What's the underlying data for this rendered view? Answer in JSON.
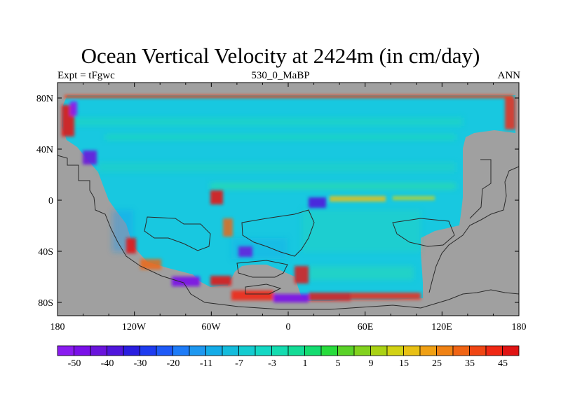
{
  "map": {
    "title": "Ocean Vertical Velocity at 2424m (in cm/day)",
    "left_string": "Expt = tFgwc",
    "center_string": "530_0_MaBP",
    "right_string": "ANN",
    "x_ticks": [
      "180",
      "120W",
      "60W",
      "0",
      "60E",
      "120E",
      "180"
    ],
    "y_ticks": [
      "80N",
      "40N",
      "0",
      "40S",
      "80S"
    ],
    "land_color": "#a0a0a0",
    "colorbar": {
      "labels": [
        "-50",
        "-40",
        "-30",
        "-20",
        "-11",
        "-7",
        "-3",
        "1",
        "5",
        "9",
        "15",
        "25",
        "35",
        "45"
      ],
      "colors": [
        "#8a1cf0",
        "#7a10e8",
        "#6a14dc",
        "#5016dc",
        "#2a1ee0",
        "#1e3cf0",
        "#1e5af8",
        "#1e7cf8",
        "#1e98f0",
        "#14ace8",
        "#14bcdc",
        "#14ccd0",
        "#14d8c4",
        "#14dcb0",
        "#14dc96",
        "#14dc70",
        "#28dc3c",
        "#5ad228",
        "#82d21e",
        "#aad214",
        "#d2d214",
        "#e8c014",
        "#f0a014",
        "#f08214",
        "#f06414",
        "#f04614",
        "#f02814",
        "#e01414"
      ]
    }
  }
}
